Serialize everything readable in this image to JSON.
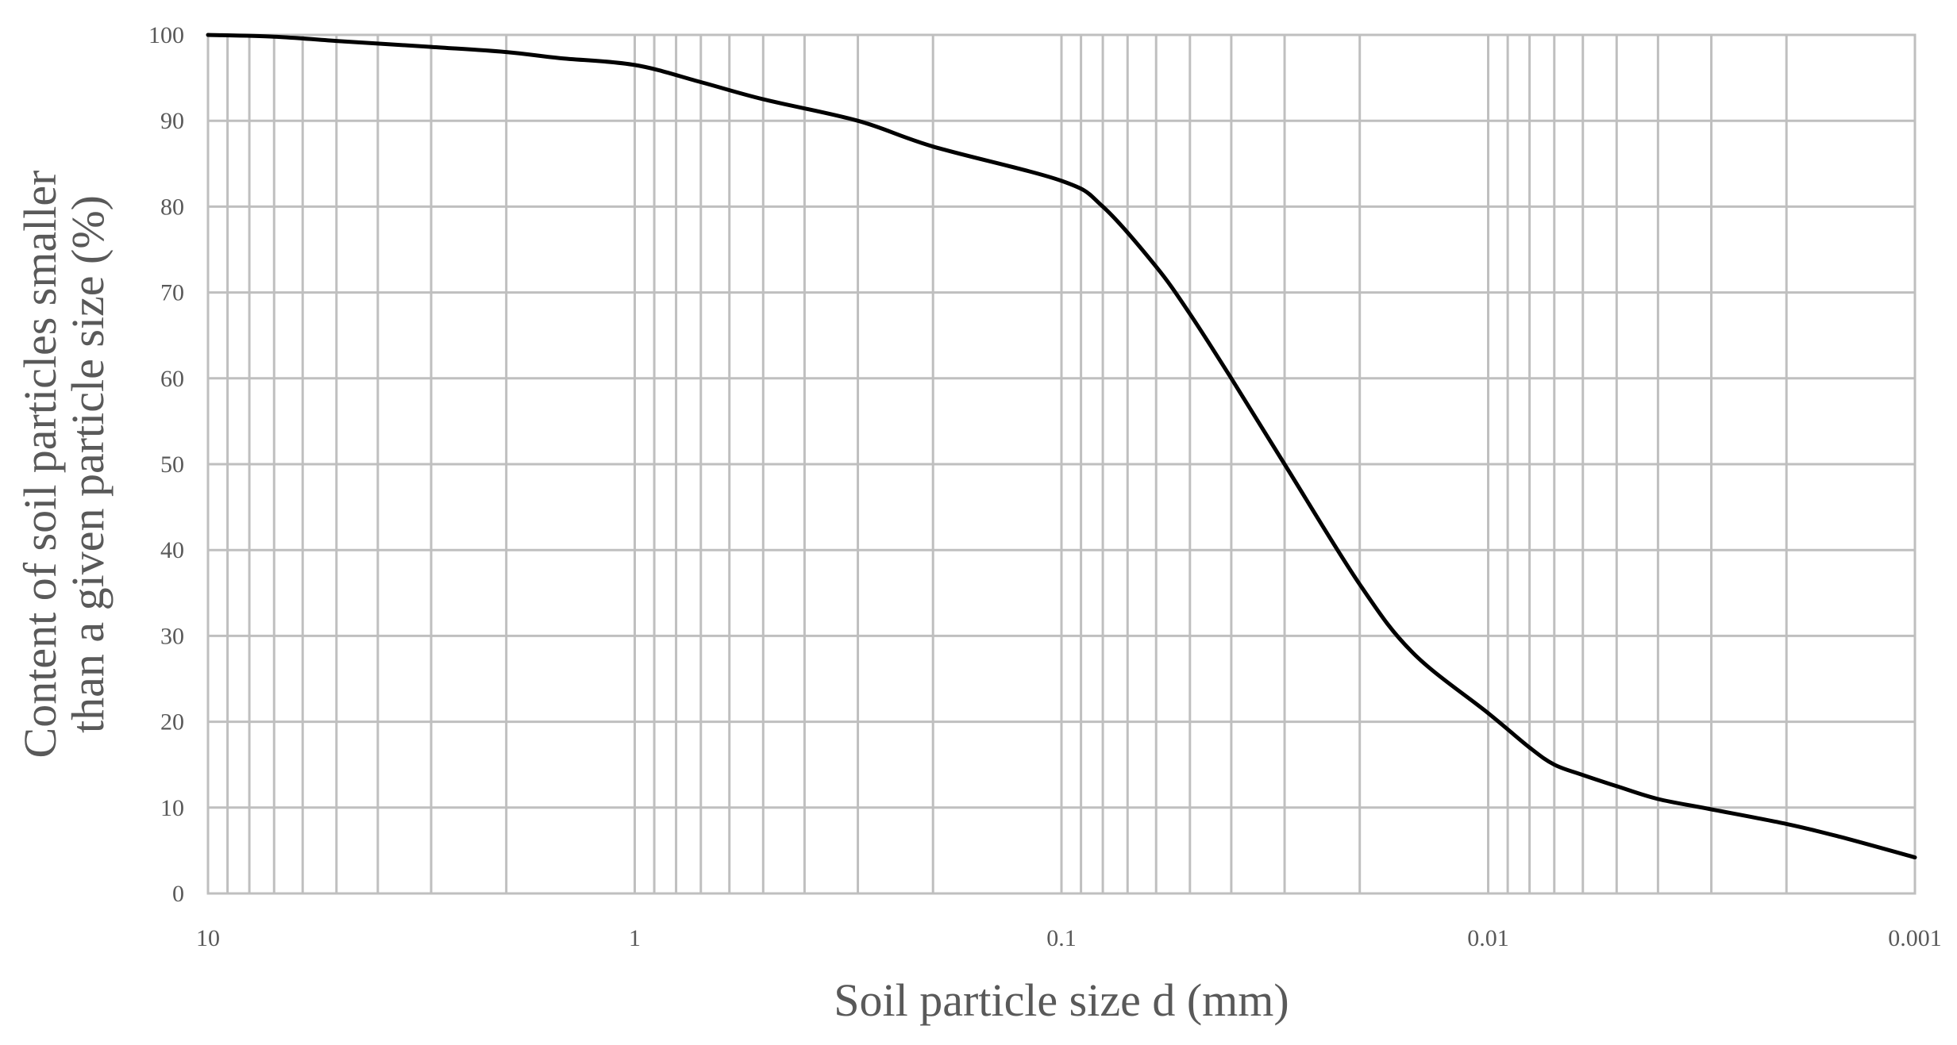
{
  "chart_data": {
    "type": "line",
    "title": "",
    "xlabel": "Soil particle size d (mm)",
    "ylabel_lines": [
      "Content of soil particles smaller",
      "than a given particle size (%)"
    ],
    "x_scale": "log",
    "x_reversed": true,
    "xlim": [
      10,
      0.001
    ],
    "ylim": [
      0,
      100
    ],
    "grid": true,
    "x_ticks": [
      10,
      1,
      0.1,
      0.01,
      0.001
    ],
    "x_tick_labels": [
      "10",
      "1",
      "0.1",
      "0.01",
      "0.001"
    ],
    "y_ticks": [
      0,
      10,
      20,
      30,
      40,
      50,
      60,
      70,
      80,
      90,
      100
    ],
    "y_tick_labels": [
      "0",
      "10",
      "20",
      "30",
      "40",
      "50",
      "60",
      "70",
      "80",
      "90",
      "100"
    ],
    "series": [
      {
        "color": "#000000",
        "x": [
          10,
          7,
          5,
          3,
          2,
          1.5,
          1,
          0.7,
          0.5,
          0.3,
          0.2,
          0.1,
          0.08,
          0.06,
          0.05,
          0.04,
          0.03,
          0.02,
          0.015,
          0.01,
          0.008,
          0.007,
          0.006,
          0.005,
          0.004,
          0.003,
          0.002,
          0.0015,
          0.001
        ],
        "y": [
          100,
          99.8,
          99.3,
          98.6,
          98,
          97.3,
          96.5,
          94.5,
          92.5,
          90,
          87,
          83,
          80,
          73,
          67.5,
          60,
          50,
          36,
          28,
          21,
          17,
          15,
          13.8,
          12.5,
          11,
          9.8,
          8.1,
          6.6,
          4.2
        ]
      }
    ],
    "colors": {
      "grid": "#bfbfbf",
      "curve": "#000000",
      "text": "#595959"
    }
  }
}
